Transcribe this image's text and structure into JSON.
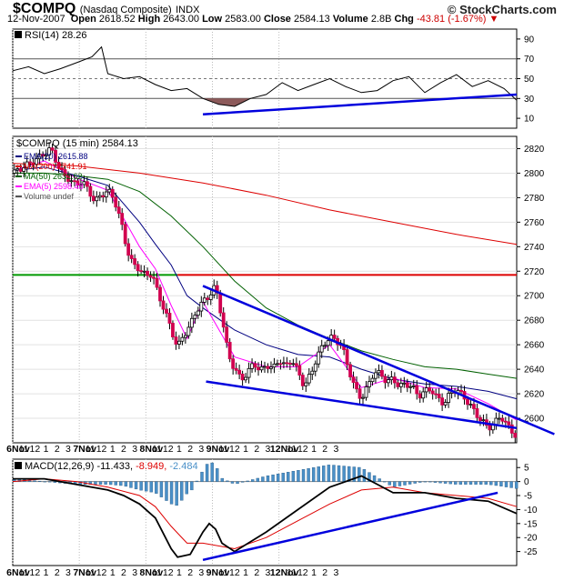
{
  "header": {
    "symbol": "$COMPQ",
    "name": "(Nasdaq Composite)",
    "exchange": "INDX",
    "date": "12-Nov-2007",
    "open_label": "Open",
    "open": "2618.52",
    "high_label": "High",
    "high": "2643.00",
    "low_label": "Low",
    "low": "2583.00",
    "close_label": "Close",
    "close": "2584.13",
    "volume_label": "Volume",
    "volume": "2.8B",
    "chg_label": "Chg",
    "chg": "-43.81 (-1.67%)",
    "brand": "© StockCharts.com"
  },
  "colors": {
    "candle_up": "#ffffff",
    "candle_down": "#d1004f",
    "ema20": "#000080",
    "ma200": "#dd0000",
    "ma50": "#006000",
    "ema5": "#ff00ff",
    "trend": "#0000dd",
    "rsi_fill": "#8c5a5a",
    "macd_hist": "#4a90c8",
    "macd_line": "#000000",
    "macd_signal": "#dd0000",
    "support": "#009900",
    "resistance": "#dd0000"
  },
  "chart_data": [
    {
      "type": "line",
      "title": "RSI(14) 28.26",
      "name": "RSI(14)",
      "last": "28.26",
      "ylim": [
        0,
        100
      ],
      "yticks": [
        10,
        30,
        50,
        70,
        90
      ],
      "reference_levels": [
        30,
        70
      ],
      "x": [
        0,
        5,
        10,
        15,
        20,
        25,
        28,
        30,
        35,
        40,
        45,
        50,
        55,
        60,
        65,
        70,
        75,
        80,
        85,
        90,
        95,
        100,
        105,
        110,
        115,
        120,
        125,
        130,
        135,
        140,
        145,
        150,
        155,
        159
      ],
      "values": [
        58,
        62,
        55,
        60,
        66,
        72,
        82,
        55,
        50,
        52,
        44,
        38,
        40,
        30,
        24,
        22,
        30,
        34,
        46,
        38,
        44,
        50,
        42,
        36,
        38,
        48,
        52,
        36,
        46,
        54,
        42,
        48,
        40,
        28.26
      ]
    },
    {
      "type": "candlestick",
      "title": "$COMPQ (15 min) 2584.13",
      "interval": "15 min",
      "ylim": [
        2580,
        2830
      ],
      "yticks": [
        2600,
        2620,
        2640,
        2660,
        2680,
        2700,
        2720,
        2740,
        2760,
        2780,
        2800,
        2820
      ],
      "legend": [
        {
          "name": "EMA(20)",
          "value": "2615.88",
          "color": "#000080"
        },
        {
          "name": "MA(200)",
          "value": "2741.91",
          "color": "#dd0000"
        },
        {
          "name": "MA(50)",
          "value": "2632.62",
          "color": "#006000"
        },
        {
          "name": "EMA(5)",
          "value": "2598.48",
          "color": "#ff00ff"
        },
        {
          "name": "Volume undef",
          "value": "",
          "color": "#555555"
        }
      ],
      "close_series": {
        "x": [
          0,
          4,
          8,
          12,
          14,
          16,
          18,
          20,
          22,
          24,
          26,
          28,
          30,
          32,
          34,
          36,
          38,
          40,
          42,
          44,
          46,
          48,
          50,
          52,
          54,
          56,
          58,
          60,
          62,
          64,
          66,
          68,
          70,
          72,
          74,
          76,
          78,
          80,
          82,
          84,
          86,
          88,
          90,
          92,
          94,
          96,
          98,
          100,
          102,
          104,
          106,
          108,
          110,
          112,
          114,
          116,
          118,
          120,
          122,
          124,
          126,
          128,
          130,
          132,
          134,
          136,
          138,
          140,
          142,
          144,
          146,
          148,
          150,
          152,
          154,
          156,
          158,
          159
        ],
        "values": [
          2800,
          2806,
          2812,
          2820,
          2808,
          2798,
          2795,
          2790,
          2794,
          2785,
          2777,
          2782,
          2786,
          2779,
          2762,
          2738,
          2725,
          2722,
          2716,
          2718,
          2700,
          2688,
          2672,
          2658,
          2668,
          2676,
          2688,
          2695,
          2700,
          2708,
          2682,
          2652,
          2640,
          2632,
          2636,
          2646,
          2638,
          2644,
          2640,
          2648,
          2642,
          2648,
          2638,
          2626,
          2636,
          2650,
          2660,
          2666,
          2664,
          2658,
          2640,
          2624,
          2616,
          2626,
          2638,
          2636,
          2630,
          2632,
          2626,
          2628,
          2626,
          2618,
          2622,
          2624,
          2616,
          2612,
          2620,
          2624,
          2618,
          2612,
          2604,
          2598,
          2592,
          2596,
          2602,
          2594,
          2588,
          2584.13
        ]
      },
      "ema20": {
        "x": [
          0,
          10,
          20,
          30,
          40,
          45,
          50,
          55,
          60,
          70,
          80,
          90,
          100,
          110,
          120,
          130,
          140,
          150,
          159
        ],
        "values": [
          2802,
          2805,
          2798,
          2790,
          2760,
          2742,
          2725,
          2700,
          2690,
          2672,
          2660,
          2652,
          2650,
          2640,
          2632,
          2628,
          2626,
          2622,
          2615.88
        ]
      },
      "ema5": {
        "x": [
          0,
          10,
          20,
          30,
          40,
          45,
          50,
          55,
          60,
          70,
          80,
          90,
          100,
          110,
          120,
          130,
          140,
          150,
          159
        ],
        "values": [
          2802,
          2810,
          2796,
          2786,
          2740,
          2722,
          2692,
          2665,
          2695,
          2650,
          2642,
          2642,
          2660,
          2625,
          2633,
          2625,
          2624,
          2612,
          2598.48
        ]
      },
      "ma50": {
        "x": [
          0,
          10,
          20,
          30,
          40,
          50,
          60,
          70,
          80,
          90,
          100,
          110,
          120,
          130,
          140,
          150,
          159
        ],
        "values": [
          2800,
          2800,
          2798,
          2795,
          2785,
          2765,
          2740,
          2712,
          2690,
          2676,
          2665,
          2655,
          2648,
          2642,
          2640,
          2636,
          2632.62
        ]
      },
      "ma200": {
        "x": [
          0,
          20,
          40,
          60,
          80,
          100,
          120,
          140,
          159
        ],
        "values": [
          2808,
          2806,
          2800,
          2792,
          2782,
          2770,
          2760,
          2750,
          2741.91
        ]
      },
      "horizontal_lines": [
        {
          "value": 2717,
          "x_from": 0,
          "x_to": 52,
          "color": "#009900"
        },
        {
          "value": 2717,
          "x_from": 52,
          "x_to": 159,
          "color": "#dd0000"
        }
      ],
      "trend_lines": [
        {
          "x1": 60,
          "y1": 2708,
          "x2": 159,
          "y2": 2600
        },
        {
          "x1": 61,
          "y1": 2630,
          "x2": 159,
          "y2": 2592
        }
      ]
    },
    {
      "type": "bar",
      "title": "MACD(12,26,9) -11.433, -8.949, -2.484",
      "name": "MACD(12,26,9)",
      "values_label": [
        "-11.433",
        "-8.949",
        "-2.484"
      ],
      "ylim": [
        -30,
        8
      ],
      "yticks": [
        5,
        0,
        -5,
        -10,
        -15,
        -20,
        -25
      ],
      "macd": {
        "x": [
          0,
          10,
          20,
          30,
          35,
          40,
          45,
          50,
          52,
          56,
          60,
          62,
          64,
          66,
          70,
          80,
          90,
          100,
          110,
          120,
          130,
          140,
          150,
          159
        ],
        "values": [
          1,
          1,
          -1,
          -3,
          -5,
          -8,
          -13,
          -24,
          -27,
          -26,
          -18,
          -15,
          -17,
          -22,
          -25,
          -18,
          -10,
          -2,
          2,
          -4,
          -4,
          -6,
          -7,
          -11.433
        ]
      },
      "signal": {
        "x": [
          0,
          10,
          20,
          30,
          40,
          45,
          50,
          55,
          60,
          70,
          80,
          90,
          100,
          110,
          120,
          130,
          140,
          150,
          159
        ],
        "values": [
          0,
          1,
          0,
          -2,
          -5,
          -9,
          -16,
          -22,
          -22,
          -24,
          -20,
          -14,
          -8,
          -3,
          -2,
          -4,
          -5,
          -6,
          -8.949
        ]
      }
    }
  ],
  "xaxis": {
    "labels": [
      {
        "x": 0,
        "text": "6Nov",
        "bold": true
      },
      {
        "x": 3.5,
        "text": "11"
      },
      {
        "x": 7,
        "text": "12"
      },
      {
        "x": 10.5,
        "text": "1"
      },
      {
        "x": 14,
        "text": "2"
      },
      {
        "x": 17.5,
        "text": "3"
      },
      {
        "x": 21,
        "text": "7Nov",
        "bold": true
      },
      {
        "x": 24.5,
        "text": "11"
      },
      {
        "x": 28,
        "text": "12"
      },
      {
        "x": 31.5,
        "text": "1"
      },
      {
        "x": 35,
        "text": "2"
      },
      {
        "x": 38.5,
        "text": "3"
      },
      {
        "x": 42,
        "text": "8Nov",
        "bold": true
      },
      {
        "x": 45.5,
        "text": "11"
      },
      {
        "x": 49,
        "text": "12"
      },
      {
        "x": 52.5,
        "text": "1"
      },
      {
        "x": 56,
        "text": "2"
      },
      {
        "x": 59.5,
        "text": "3"
      },
      {
        "x": 63,
        "text": "9Nov",
        "bold": true
      },
      {
        "x": 66.5,
        "text": "11"
      },
      {
        "x": 70,
        "text": "12"
      },
      {
        "x": 73.5,
        "text": "1"
      },
      {
        "x": 77,
        "text": "2"
      },
      {
        "x": 80.5,
        "text": "3"
      },
      {
        "x": 84,
        "text": "12Nov",
        "bold": true
      },
      {
        "x": 88,
        "text": "11"
      },
      {
        "x": 91.5,
        "text": "12"
      },
      {
        "x": 95,
        "text": "1"
      },
      {
        "x": 98.5,
        "text": "2"
      },
      {
        "x": 102,
        "text": "3"
      }
    ]
  }
}
